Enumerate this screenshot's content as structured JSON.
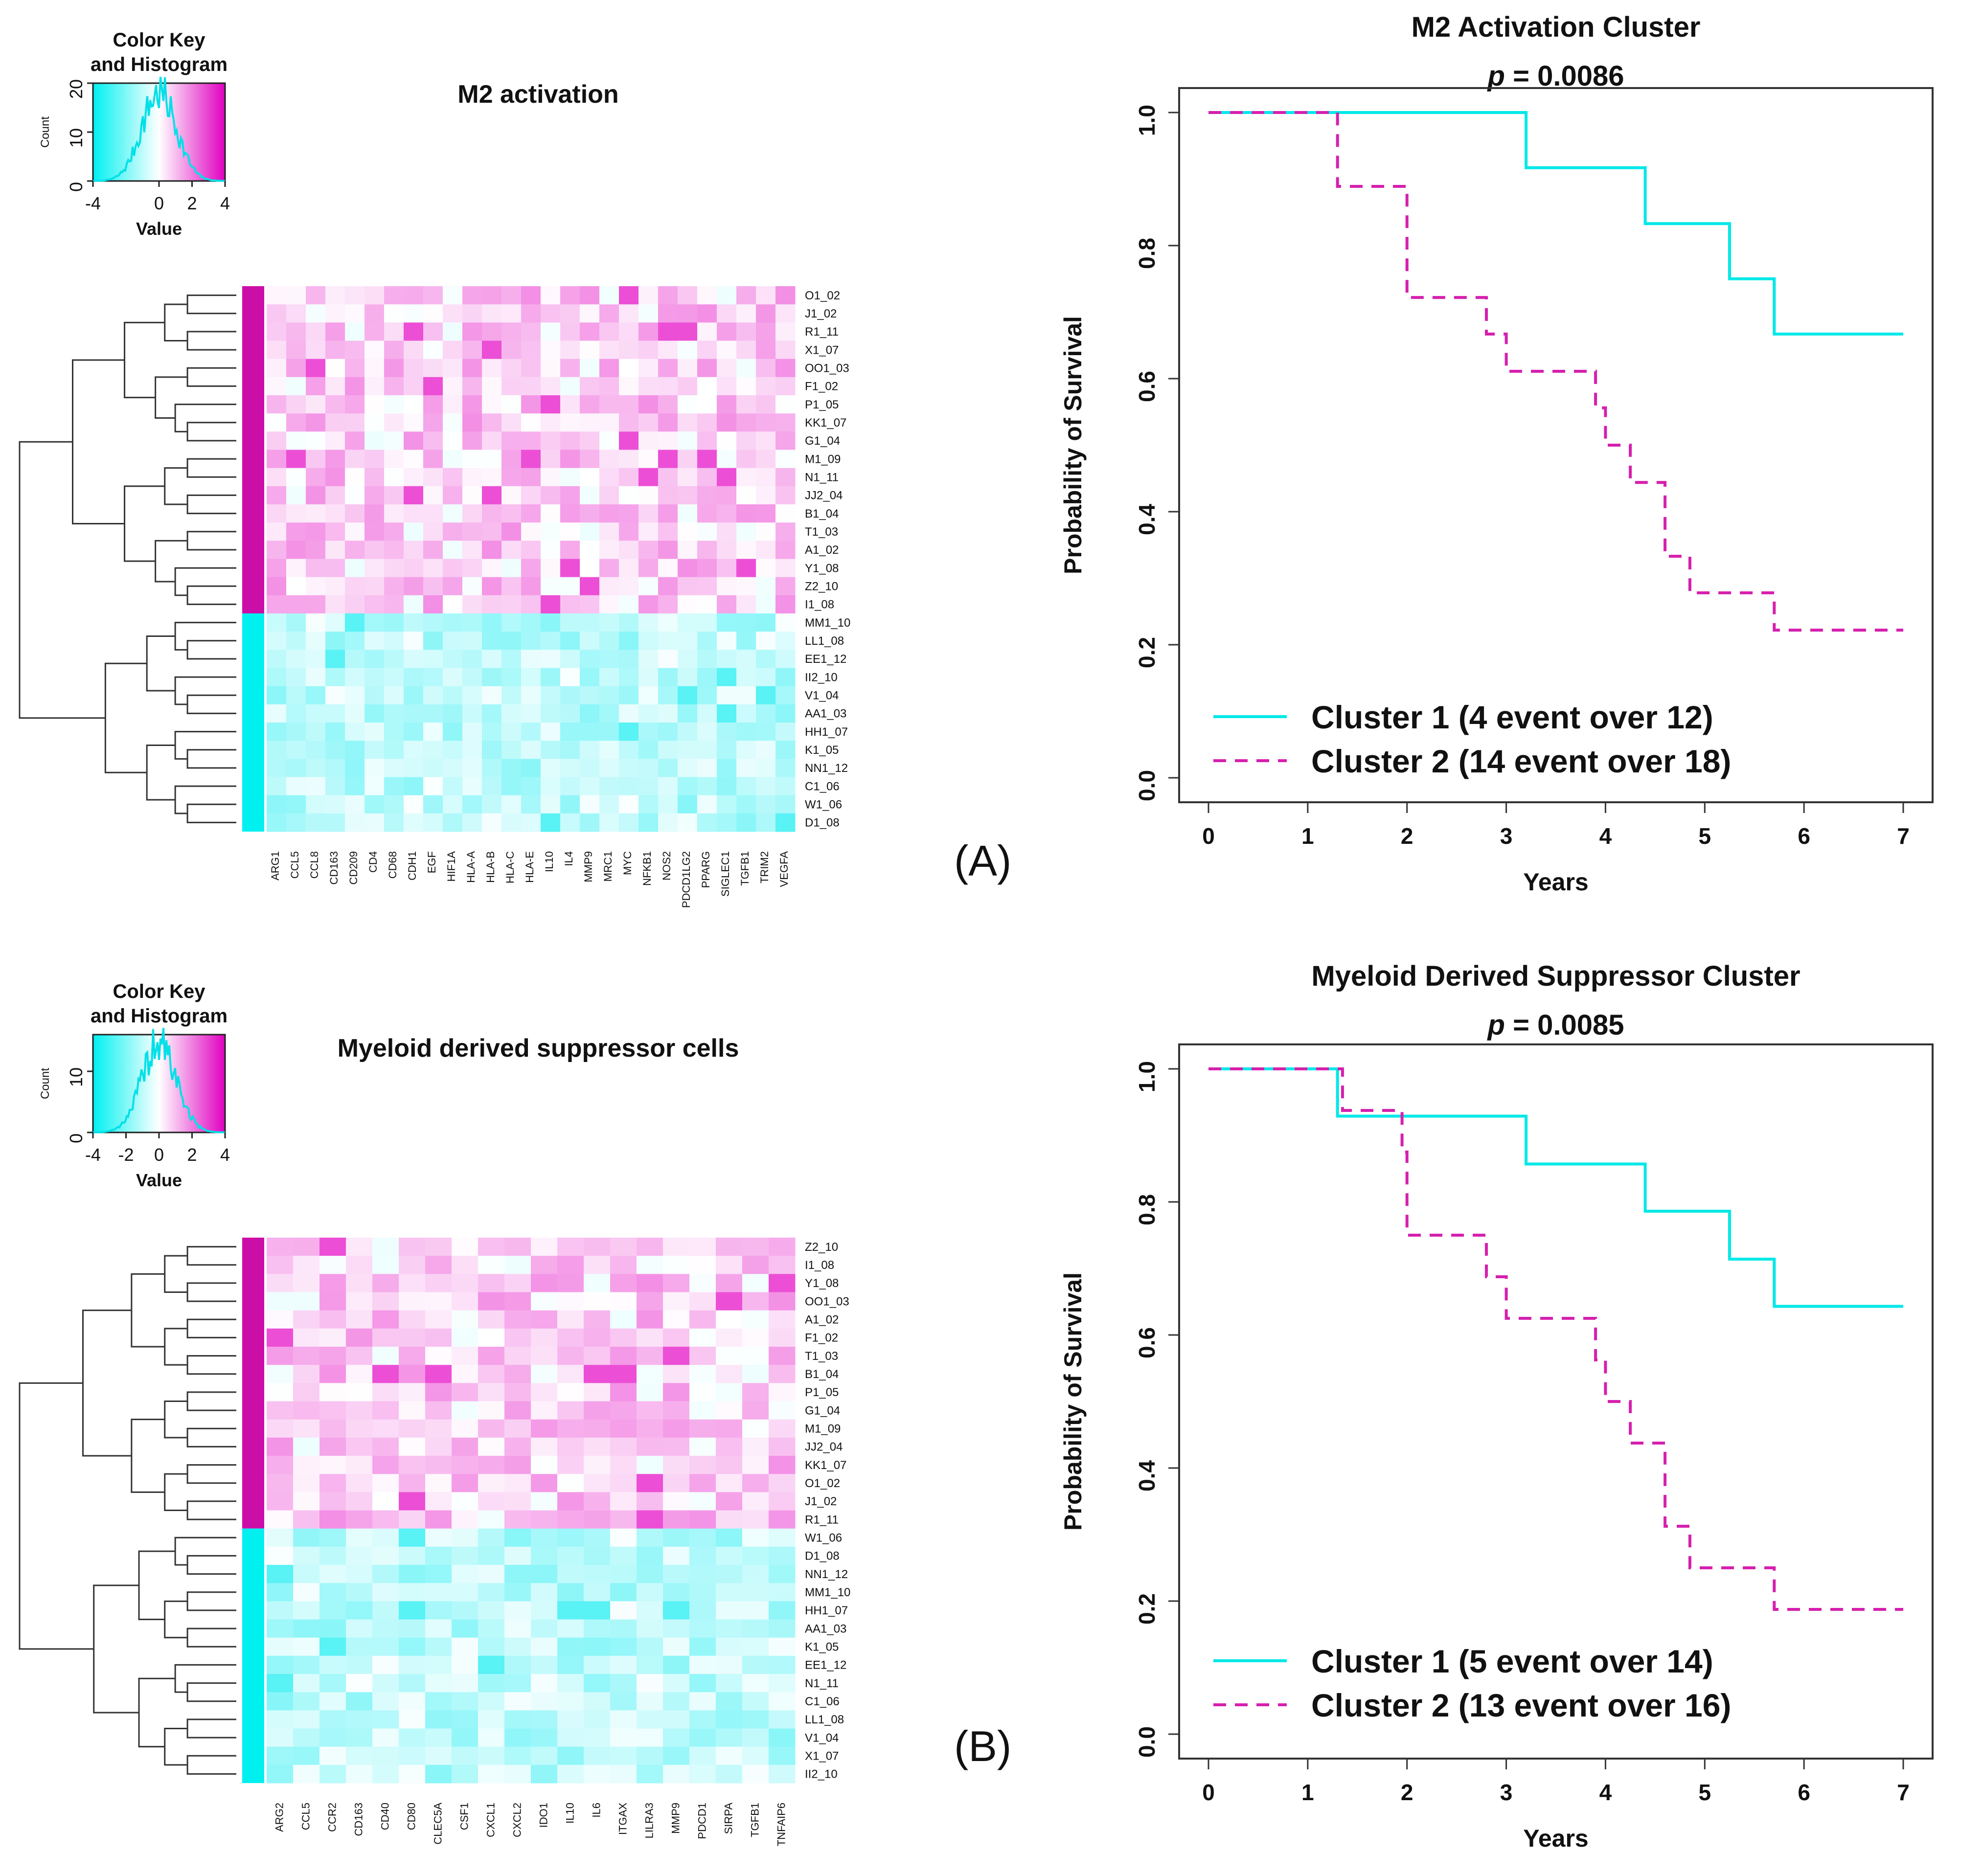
{
  "panels": [
    {
      "id": "A",
      "panel_label": "(A)",
      "heatmap": {
        "title": "M2 activation",
        "key_title": "Color Key",
        "key_subtitle": "and Histogram",
        "key_xlabel": "Value",
        "key_ylabel": "Count",
        "key_xticks": [
          "-4",
          "0",
          "2",
          "4"
        ],
        "key_yticks": [
          "0",
          "10",
          "20"
        ],
        "genes": [
          "ARG1",
          "CCL5",
          "CCL8",
          "CD163",
          "CD209",
          "CD4",
          "CD68",
          "CDH1",
          "EGF",
          "HIF1A",
          "HLA-A",
          "HLA-B",
          "HLA-C",
          "HLA-E",
          "IL10",
          "IL4",
          "MMP9",
          "MRC1",
          "MYC",
          "NFKB1",
          "NOS2",
          "PDCD1LG2",
          "PPARG",
          "SIGLEC1",
          "TGFB1",
          "TRIM2",
          "VEGFA"
        ],
        "samples": [
          "O1_02",
          "J1_02",
          "R1_11",
          "X1_07",
          "OO1_03",
          "F1_02",
          "P1_05",
          "KK1_07",
          "G1_04",
          "M1_09",
          "N1_11",
          "JJ2_04",
          "B1_04",
          "T1_03",
          "A1_02",
          "Y1_08",
          "Z2_10",
          "I1_08",
          "MM1_10",
          "LL1_08",
          "EE1_12",
          "II2_10",
          "V1_04",
          "AA1_03",
          "HH1_07",
          "K1_05",
          "NN1_12",
          "C1_06",
          "W1_06",
          "D1_08"
        ],
        "cluster_sizes": [
          18,
          12
        ],
        "cluster_colors": [
          "#cc0ea8",
          "#00f0f0"
        ]
      },
      "km": {
        "title": "M2 Activation Cluster",
        "pvalue_label": "p",
        "pvalue_value": " = 0.0086",
        "xlabel": "Years",
        "ylabel": "Probability of Survival",
        "xticks": [
          "0",
          "1",
          "2",
          "3",
          "4",
          "5",
          "6",
          "7"
        ],
        "yticks": [
          "0.0",
          "0.2",
          "0.4",
          "0.6",
          "0.8",
          "1.0"
        ],
        "xlim": [
          0,
          7
        ],
        "ylim": [
          0,
          1
        ],
        "series": [
          {
            "name": "Cluster 1 (4 event over 12)",
            "color": "#00e8e8",
            "dash": "solid",
            "steps": [
              [
                0,
                1.0
              ],
              [
                3.2,
                0.917
              ],
              [
                4.4,
                0.833
              ],
              [
                5.25,
                0.75
              ],
              [
                5.7,
                0.667
              ],
              [
                7,
                0.667
              ]
            ]
          },
          {
            "name": "Cluster 2 (14 event over 18)",
            "color": "#d61fae",
            "dash": "dashed",
            "steps": [
              [
                0,
                1.0
              ],
              [
                1.3,
                0.889
              ],
              [
                2.0,
                0.722
              ],
              [
                2.8,
                0.667
              ],
              [
                3.0,
                0.611
              ],
              [
                3.9,
                0.556
              ],
              [
                4.0,
                0.5
              ],
              [
                4.25,
                0.444
              ],
              [
                4.6,
                0.333
              ],
              [
                4.85,
                0.278
              ],
              [
                5.7,
                0.222
              ],
              [
                7,
                0.222
              ]
            ]
          }
        ]
      }
    },
    {
      "id": "B",
      "panel_label": "(B)",
      "heatmap": {
        "title": "Myeloid derived suppressor cells",
        "key_title": "Color Key",
        "key_subtitle": "and Histogram",
        "key_xlabel": "Value",
        "key_ylabel": "Count",
        "key_xticks": [
          "-4",
          "-2",
          "0",
          "2",
          "4"
        ],
        "key_yticks": [
          "0",
          "10"
        ],
        "genes": [
          "ARG2",
          "CCL5",
          "CCR2",
          "CD163",
          "CD40",
          "CD80",
          "CLEC5A",
          "CSF1",
          "CXCL1",
          "CXCL2",
          "IDO1",
          "IL10",
          "IL6",
          "ITGAX",
          "LILRA3",
          "MMP9",
          "PDCD1",
          "SIRPA",
          "TGFB1",
          "TNFAIP6"
        ],
        "samples": [
          "Z2_10",
          "I1_08",
          "Y1_08",
          "OO1_03",
          "A1_02",
          "F1_02",
          "T1_03",
          "B1_04",
          "P1_05",
          "G1_04",
          "M1_09",
          "JJ2_04",
          "KK1_07",
          "O1_02",
          "J1_02",
          "R1_11",
          "W1_06",
          "D1_08",
          "NN1_12",
          "MM1_10",
          "HH1_07",
          "AA1_03",
          "K1_05",
          "EE1_12",
          "N1_11",
          "C1_06",
          "LL1_08",
          "V1_04",
          "X1_07",
          "II2_10"
        ],
        "cluster_sizes": [
          16,
          14
        ],
        "cluster_colors": [
          "#cc0ea8",
          "#00f0f0"
        ]
      },
      "km": {
        "title": "Myeloid Derived Suppressor Cluster",
        "pvalue_label": "p",
        "pvalue_value": " = 0.0085",
        "xlabel": "Years",
        "ylabel": "Probability of Survival",
        "xticks": [
          "0",
          "1",
          "2",
          "3",
          "4",
          "5",
          "6",
          "7"
        ],
        "yticks": [
          "0.0",
          "0.2",
          "0.4",
          "0.6",
          "0.8",
          "1.0"
        ],
        "xlim": [
          0,
          7
        ],
        "ylim": [
          0,
          1
        ],
        "series": [
          {
            "name": "Cluster 1 (5 event over 14)",
            "color": "#00e8e8",
            "dash": "solid",
            "steps": [
              [
                0,
                1.0
              ],
              [
                1.3,
                0.929
              ],
              [
                3.2,
                0.857
              ],
              [
                4.4,
                0.786
              ],
              [
                5.25,
                0.714
              ],
              [
                5.7,
                0.643
              ],
              [
                7,
                0.643
              ]
            ]
          },
          {
            "name": "Cluster 2 (13 event over 16)",
            "color": "#d61fae",
            "dash": "dashed",
            "steps": [
              [
                0,
                1.0
              ],
              [
                1.35,
                0.9375
              ],
              [
                1.95,
                0.875
              ],
              [
                2.0,
                0.75
              ],
              [
                2.8,
                0.6875
              ],
              [
                3.0,
                0.625
              ],
              [
                3.9,
                0.5625
              ],
              [
                4.0,
                0.5
              ],
              [
                4.25,
                0.4375
              ],
              [
                4.6,
                0.3125
              ],
              [
                4.85,
                0.25
              ],
              [
                5.7,
                0.1875
              ],
              [
                7,
                0.1875
              ]
            ]
          }
        ]
      }
    }
  ],
  "chart_data": [
    {
      "type": "heatmap",
      "title": "M2 activation",
      "columns": [
        "ARG1",
        "CCL5",
        "CCL8",
        "CD163",
        "CD209",
        "CD4",
        "CD68",
        "CDH1",
        "EGF",
        "HIF1A",
        "HLA-A",
        "HLA-B",
        "HLA-C",
        "HLA-E",
        "IL10",
        "IL4",
        "MMP9",
        "MRC1",
        "MYC",
        "NFKB1",
        "NOS2",
        "PDCD1LG2",
        "PPARG",
        "SIGLEC1",
        "TGFB1",
        "TRIM2",
        "VEGFA"
      ],
      "rows": [
        "O1_02",
        "J1_02",
        "R1_11",
        "X1_07",
        "OO1_03",
        "F1_02",
        "P1_05",
        "KK1_07",
        "G1_04",
        "M1_09",
        "N1_11",
        "JJ2_04",
        "B1_04",
        "T1_03",
        "A1_02",
        "Y1_08",
        "Z2_10",
        "I1_08",
        "MM1_10",
        "LL1_08",
        "EE1_12",
        "II2_10",
        "V1_04",
        "AA1_03",
        "HH1_07",
        "K1_05",
        "NN1_12",
        "C1_06",
        "W1_06",
        "D1_08"
      ],
      "row_clusters": {
        "cluster_2_magenta": 18,
        "cluster_1_cyan": 12
      },
      "color_scale": {
        "low": "#00f0f0",
        "mid": "#ffffff",
        "high": "#e000c0",
        "range": [
          -4,
          4
        ]
      }
    },
    {
      "type": "line",
      "title": "M2 Activation Cluster p = 0.0086",
      "xlabel": "Years",
      "ylabel": "Probability of Survival",
      "xlim": [
        0,
        7
      ],
      "ylim": [
        0,
        1
      ],
      "series": [
        {
          "name": "Cluster 1 (4 event over 12)",
          "x": [
            0,
            3.2,
            4.4,
            5.25,
            5.7,
            7
          ],
          "y": [
            1.0,
            0.917,
            0.833,
            0.75,
            0.667,
            0.667
          ]
        },
        {
          "name": "Cluster 2 (14 event over 18)",
          "x": [
            0,
            1.3,
            2.0,
            2.8,
            3.0,
            3.9,
            4.0,
            4.25,
            4.6,
            4.85,
            5.7,
            7
          ],
          "y": [
            1.0,
            0.889,
            0.722,
            0.667,
            0.611,
            0.556,
            0.5,
            0.444,
            0.333,
            0.278,
            0.222,
            0.222
          ]
        }
      ]
    },
    {
      "type": "heatmap",
      "title": "Myeloid derived suppressor cells",
      "columns": [
        "ARG2",
        "CCL5",
        "CCR2",
        "CD163",
        "CD40",
        "CD80",
        "CLEC5A",
        "CSF1",
        "CXCL1",
        "CXCL2",
        "IDO1",
        "IL10",
        "IL6",
        "ITGAX",
        "LILRA3",
        "MMP9",
        "PDCD1",
        "SIRPA",
        "TGFB1",
        "TNFAIP6"
      ],
      "rows": [
        "Z2_10",
        "I1_08",
        "Y1_08",
        "OO1_03",
        "A1_02",
        "F1_02",
        "T1_03",
        "B1_04",
        "P1_05",
        "G1_04",
        "M1_09",
        "JJ2_04",
        "KK1_07",
        "O1_02",
        "J1_02",
        "R1_11",
        "W1_06",
        "D1_08",
        "NN1_12",
        "MM1_10",
        "HH1_07",
        "AA1_03",
        "K1_05",
        "EE1_12",
        "N1_11",
        "C1_06",
        "LL1_08",
        "V1_04",
        "X1_07",
        "II2_10"
      ],
      "row_clusters": {
        "cluster_2_magenta": 16,
        "cluster_1_cyan": 14
      },
      "color_scale": {
        "low": "#00f0f0",
        "mid": "#ffffff",
        "high": "#e000c0",
        "range": [
          -4,
          4
        ]
      }
    },
    {
      "type": "line",
      "title": "Myeloid Derived Suppressor Cluster p = 0.0085",
      "xlabel": "Years",
      "ylabel": "Probability of Survival",
      "xlim": [
        0,
        7
      ],
      "ylim": [
        0,
        1
      ],
      "series": [
        {
          "name": "Cluster 1 (5 event over 14)",
          "x": [
            0,
            1.3,
            3.2,
            4.4,
            5.25,
            5.7,
            7
          ],
          "y": [
            1.0,
            0.929,
            0.857,
            0.786,
            0.714,
            0.643,
            0.643
          ]
        },
        {
          "name": "Cluster 2 (13 event over 16)",
          "x": [
            0,
            1.35,
            1.95,
            2.0,
            2.8,
            3.0,
            3.9,
            4.0,
            4.25,
            4.6,
            4.85,
            5.7,
            7
          ],
          "y": [
            1.0,
            0.9375,
            0.875,
            0.75,
            0.6875,
            0.625,
            0.5625,
            0.5,
            0.4375,
            0.3125,
            0.25,
            0.1875,
            0.1875
          ]
        }
      ]
    }
  ]
}
